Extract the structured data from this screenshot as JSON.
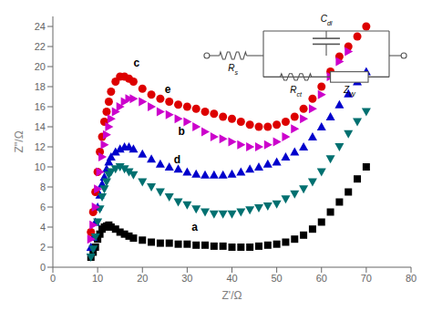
{
  "chart_data": {
    "type": "scatter",
    "xlabel": "Z'/Ω",
    "ylabel": "Z''/Ω",
    "xlim": [
      0,
      80
    ],
    "ylim": [
      0,
      25
    ],
    "xticks": [
      0,
      10,
      20,
      30,
      40,
      50,
      60,
      70,
      80
    ],
    "yticks": [
      0,
      2,
      4,
      6,
      8,
      10,
      12,
      14,
      16,
      18,
      20,
      22,
      24
    ],
    "grid": false,
    "series": [
      {
        "color": "#000000",
        "marker": "square",
        "x": [
          8.5,
          9.0,
          9.5,
          10.0,
          10.5,
          11.0,
          11.5,
          12.0,
          12.5,
          13.0,
          14.0,
          15.0,
          16.0,
          17.0,
          18.0,
          20.0,
          22.0,
          24.0,
          26.0,
          28.0,
          30.0,
          32.0,
          34.0,
          36.0,
          38.0,
          40.0,
          42.0,
          44.0,
          46.0,
          48.0,
          50.0,
          52.0,
          54.0,
          56.0,
          58.0,
          60.0,
          62.0,
          64.0,
          66.0,
          68.0,
          70.0
        ],
        "y": [
          1.0,
          1.5,
          2.0,
          2.8,
          3.3,
          3.8,
          4.0,
          4.1,
          4.2,
          4.0,
          3.8,
          3.5,
          3.3,
          3.1,
          2.9,
          2.7,
          2.5,
          2.4,
          2.4,
          2.3,
          2.3,
          2.2,
          2.2,
          2.1,
          2.1,
          2.0,
          2.0,
          2.0,
          2.1,
          2.2,
          2.3,
          2.5,
          2.8,
          3.2,
          3.8,
          4.5,
          5.5,
          6.5,
          7.5,
          8.8,
          10.0
        ]
      },
      {
        "color": "#0000cc",
        "marker": "triangle-up",
        "x": [
          8.5,
          9.0,
          9.5,
          10.0,
          10.5,
          11.0,
          11.5,
          12.0,
          12.5,
          13.0,
          14.0,
          15.0,
          16.0,
          17.0,
          18.0,
          20.0,
          22.0,
          24.0,
          26.0,
          28.0,
          30.0,
          32.0,
          34.0,
          36.0,
          38.0,
          40.0,
          42.0,
          44.0,
          46.0,
          48.0,
          50.0,
          52.0,
          54.0,
          56.0,
          58.0,
          60.0,
          62.0,
          64.0,
          66.0,
          68.0,
          70.0
        ],
        "y": [
          2.0,
          3.0,
          4.5,
          6.0,
          7.2,
          8.3,
          9.0,
          9.8,
          10.5,
          11.0,
          11.5,
          11.8,
          12.0,
          12.0,
          11.8,
          11.3,
          10.8,
          10.3,
          10.0,
          9.8,
          9.5,
          9.3,
          9.2,
          9.2,
          9.2,
          9.3,
          9.5,
          9.8,
          10.0,
          10.3,
          10.5,
          11.0,
          11.5,
          12.0,
          13.0,
          14.0,
          15.0,
          16.2,
          17.3,
          18.5,
          19.5
        ]
      },
      {
        "color": "#dd0000",
        "marker": "circle",
        "x": [
          8.5,
          9.0,
          9.5,
          10.0,
          10.5,
          11.0,
          11.5,
          12.0,
          12.5,
          13.0,
          14.0,
          15.0,
          16.0,
          17.0,
          18.0,
          20.0,
          22.0,
          24.0,
          26.0,
          28.0,
          30.0,
          32.0,
          34.0,
          36.0,
          38.0,
          40.0,
          42.0,
          44.0,
          46.0,
          48.0,
          50.0,
          52.0,
          54.0,
          56.0,
          58.0,
          60.0,
          62.0,
          64.0,
          66.0,
          68.0,
          70.0
        ],
        "y": [
          3.5,
          5.5,
          7.5,
          9.5,
          11.5,
          13.0,
          14.5,
          15.5,
          16.5,
          17.5,
          18.5,
          19.0,
          19.0,
          18.8,
          18.5,
          17.8,
          17.2,
          16.8,
          16.5,
          16.2,
          16.0,
          15.8,
          15.5,
          15.3,
          15.0,
          14.8,
          14.5,
          14.2,
          14.0,
          14.0,
          14.2,
          14.5,
          15.0,
          15.8,
          16.8,
          18.0,
          19.5,
          21.0,
          22.0,
          23.0,
          24.0
        ]
      },
      {
        "color": "#007070",
        "marker": "triangle-down",
        "x": [
          8.5,
          9.0,
          9.5,
          10.0,
          10.5,
          11.0,
          11.5,
          12.0,
          12.5,
          13.0,
          14.0,
          15.0,
          16.0,
          17.0,
          18.0,
          20.0,
          22.0,
          24.0,
          26.0,
          28.0,
          30.0,
          32.0,
          34.0,
          36.0,
          38.0,
          40.0,
          42.0,
          44.0,
          46.0,
          48.0,
          50.0,
          52.0,
          54.0,
          56.0,
          58.0,
          60.0,
          62.0,
          64.0,
          66.0,
          68.0,
          70.0
        ],
        "y": [
          1.0,
          1.8,
          3.0,
          4.5,
          5.8,
          7.0,
          7.8,
          8.5,
          9.2,
          9.5,
          9.8,
          10.0,
          9.8,
          9.5,
          9.2,
          8.5,
          8.0,
          7.5,
          7.0,
          6.5,
          6.2,
          5.8,
          5.5,
          5.3,
          5.3,
          5.3,
          5.5,
          5.7,
          5.9,
          6.1,
          6.3,
          6.8,
          7.3,
          7.8,
          8.5,
          9.5,
          10.8,
          12.0,
          13.3,
          14.5,
          15.5
        ]
      },
      {
        "color": "#cc00cc",
        "marker": "triangle-right",
        "x": [
          8.5,
          9.0,
          9.5,
          10.0,
          10.5,
          11.0,
          11.5,
          12.0,
          12.5,
          13.0,
          14.0,
          15.0,
          16.0,
          17.0,
          18.0,
          20.0,
          22.0,
          24.0,
          26.0,
          28.0,
          30.0,
          32.0,
          34.0,
          36.0,
          38.0,
          40.0,
          42.0,
          44.0,
          46.0,
          48.0,
          50.0,
          52.0,
          54.0,
          56.0,
          58.0,
          60.0,
          62.0,
          64.0,
          66.0
        ],
        "y": [
          2.8,
          4.2,
          6.0,
          7.8,
          9.5,
          11.0,
          12.2,
          13.2,
          14.0,
          14.8,
          15.5,
          16.0,
          16.5,
          16.8,
          16.8,
          16.5,
          16.0,
          15.5,
          15.2,
          14.8,
          14.5,
          14.0,
          13.5,
          13.0,
          12.8,
          12.5,
          12.2,
          12.0,
          12.0,
          12.2,
          12.5,
          13.0,
          13.8,
          14.8,
          15.8,
          17.2,
          19.0,
          20.5,
          21.5
        ]
      }
    ],
    "annotations": [
      {
        "text": "a",
        "x": 31,
        "y": 3.5
      },
      {
        "text": "b",
        "x": 28,
        "y": 13.0
      },
      {
        "text": "c",
        "x": 18,
        "y": 19.8
      },
      {
        "text": "d",
        "x": 27,
        "y": 10.2
      },
      {
        "text": "e",
        "x": 25,
        "y": 17.2
      },
      {
        "text": "Rs"
      },
      {
        "text": "Cdl"
      },
      {
        "text": "Rct"
      },
      {
        "text": "ZW"
      }
    ]
  }
}
